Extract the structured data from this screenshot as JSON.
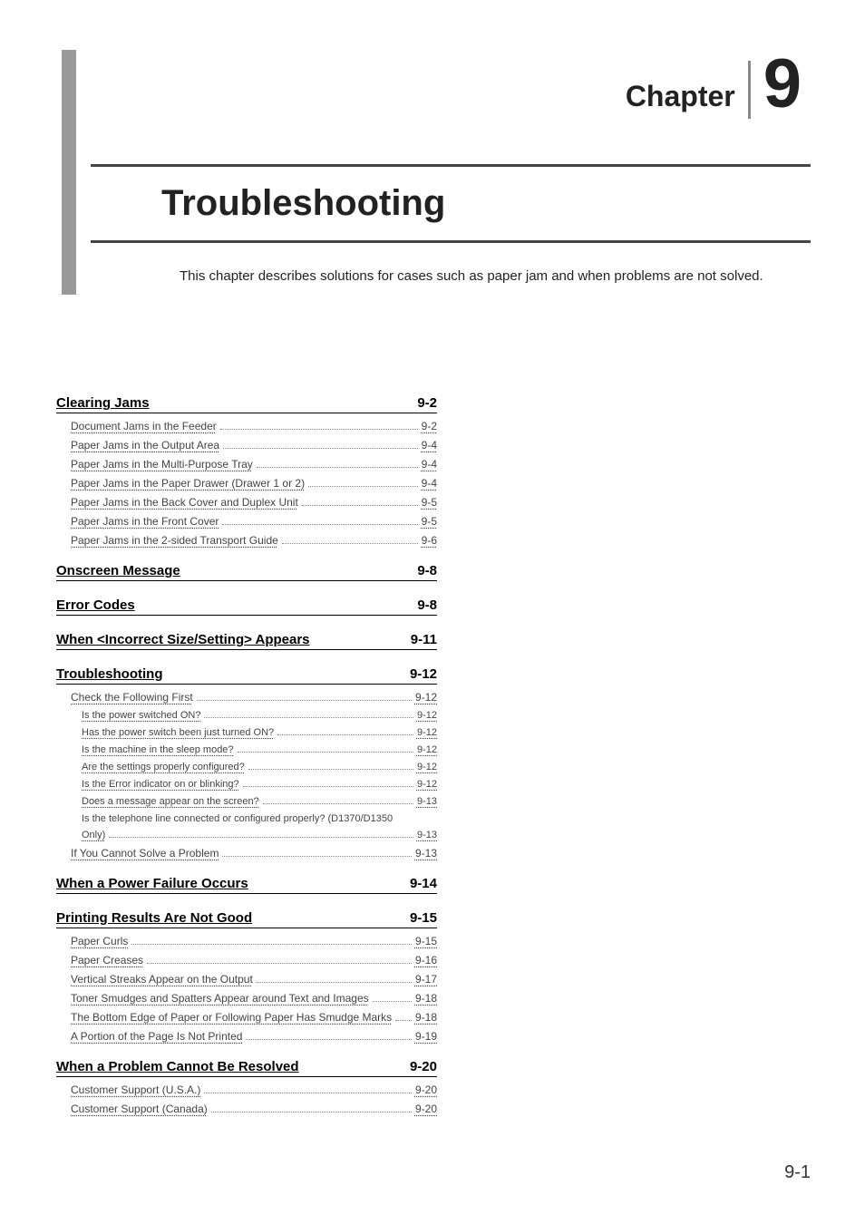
{
  "header": {
    "chapter_word": "Chapter",
    "chapter_number": "9",
    "title": "Troubleshooting",
    "intro": "This chapter describes solutions for cases such as paper jam and when problems are not solved."
  },
  "toc": [
    {
      "type": "section",
      "label": "Clearing Jams",
      "page": "9-2"
    },
    {
      "type": "item",
      "level": 1,
      "label": "Document Jams in the Feeder",
      "page": "9-2"
    },
    {
      "type": "item",
      "level": 1,
      "label": "Paper Jams in the Output Area",
      "page": "9-4"
    },
    {
      "type": "item",
      "level": 1,
      "label": "Paper Jams in the Multi-Purpose Tray",
      "page": "9-4"
    },
    {
      "type": "item",
      "level": 1,
      "label": "Paper Jams in the Paper Drawer (Drawer 1 or 2)",
      "page": "9-4"
    },
    {
      "type": "item",
      "level": 1,
      "label": "Paper Jams in the Back Cover and Duplex Unit",
      "page": "9-5"
    },
    {
      "type": "item",
      "level": 1,
      "label": "Paper Jams in the Front Cover",
      "page": "9-5"
    },
    {
      "type": "item",
      "level": 1,
      "label": "Paper Jams in the 2-sided Transport Guide",
      "page": "9-6"
    },
    {
      "type": "section",
      "label": "Onscreen Message",
      "page": "9-8"
    },
    {
      "type": "section",
      "label": "Error Codes",
      "page": "9-8"
    },
    {
      "type": "section",
      "label": "When <Incorrect Size/Setting> Appears",
      "page": "9-11"
    },
    {
      "type": "section",
      "label": "Troubleshooting",
      "page": "9-12"
    },
    {
      "type": "item",
      "level": 1,
      "label": "Check the Following First",
      "page": "9-12"
    },
    {
      "type": "item",
      "level": 2,
      "label": "Is the power switched ON?",
      "page": "9-12"
    },
    {
      "type": "item",
      "level": 2,
      "label": "Has the power switch been just turned ON?",
      "page": "9-12"
    },
    {
      "type": "item",
      "level": 2,
      "label": "Is the machine in the sleep mode?",
      "page": "9-12"
    },
    {
      "type": "item",
      "level": 2,
      "label": "Are the settings properly configured?",
      "page": "9-12"
    },
    {
      "type": "item",
      "level": 2,
      "label": "Is the Error indicator on or blinking?",
      "page": "9-12"
    },
    {
      "type": "item",
      "level": 2,
      "label": "Does a message appear on the screen?",
      "page": "9-13"
    },
    {
      "type": "item",
      "level": 2,
      "label": "Is the telephone line connected or configured properly? (D1370/D1350 Only)",
      "page": "9-13",
      "wrap": true
    },
    {
      "type": "item",
      "level": 1,
      "label": "If You Cannot Solve a Problem",
      "page": "9-13"
    },
    {
      "type": "section",
      "label": "When a Power Failure Occurs",
      "page": "9-14"
    },
    {
      "type": "section",
      "label": "Printing Results Are Not Good",
      "page": "9-15"
    },
    {
      "type": "item",
      "level": 1,
      "label": "Paper Curls",
      "page": "9-15"
    },
    {
      "type": "item",
      "level": 1,
      "label": "Paper Creases",
      "page": "9-16"
    },
    {
      "type": "item",
      "level": 1,
      "label": "Vertical Streaks Appear on the Output",
      "page": "9-17"
    },
    {
      "type": "item",
      "level": 1,
      "label": "Toner Smudges and Spatters Appear around Text and Images",
      "page": "9-18"
    },
    {
      "type": "item",
      "level": 1,
      "label": "The Bottom Edge of Paper or Following Paper Has Smudge Marks",
      "page": "9-18"
    },
    {
      "type": "item",
      "level": 1,
      "label": "A Portion of the Page Is Not Printed",
      "page": "9-19"
    },
    {
      "type": "section",
      "label": "When a Problem Cannot Be Resolved",
      "page": "9-20"
    },
    {
      "type": "item",
      "level": 1,
      "label": "Customer Support (U.S.A.)",
      "page": "9-20"
    },
    {
      "type": "item",
      "level": 1,
      "label": "Customer Support (Canada)",
      "page": "9-20"
    }
  ],
  "footer": {
    "page_number": "9-1"
  },
  "colors": {
    "leftbar": "#999999",
    "rule": "#444444",
    "text": "#222222",
    "muted": "#444444"
  }
}
